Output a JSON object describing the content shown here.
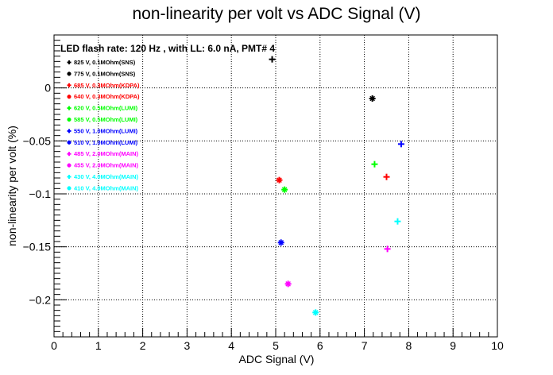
{
  "chart_data": {
    "type": "scatter",
    "title": "non-linearity per volt vs ADC Signal (V)",
    "xlabel": "ADC Signal (V)",
    "ylabel": "non-linearity per volt (%)",
    "xlim": [
      0,
      10
    ],
    "ylim": [
      -0.235,
      0.05
    ],
    "xticks": [
      0,
      1,
      2,
      3,
      4,
      5,
      6,
      7,
      8,
      9,
      10
    ],
    "xtick_labels": [
      "0",
      "1",
      "2",
      "3",
      "4",
      "5",
      "6",
      "7",
      "8",
      "9",
      "10"
    ],
    "yticks": [
      0,
      -0.05,
      -0.1,
      -0.15,
      -0.2
    ],
    "ytick_labels": [
      "0",
      "−0.05",
      "−0.1",
      "−0.15",
      "−0.2"
    ],
    "grid": true,
    "legend_title": "LED flash rate: 120 Hz , with LL: 6.0 nA, PMT# 4",
    "legend_placement": "top-left",
    "series": [
      {
        "name": "825 V, 0.1MOhm(SNS)",
        "color": "#000000",
        "marker": "plus",
        "points": [
          [
            4.92,
            0.027
          ]
        ]
      },
      {
        "name": "775 V, 0.1MOhm(SNS)",
        "color": "#000000",
        "marker": "star",
        "points": [
          [
            7.18,
            -0.01
          ]
        ]
      },
      {
        "name": "685 V, 0.3MOhm(KDPA)",
        "color": "#ff0000",
        "marker": "plus",
        "points": [
          [
            7.5,
            -0.084
          ]
        ]
      },
      {
        "name": "640 V, 0.3MOhm(KDPA)",
        "color": "#ff0000",
        "marker": "star",
        "points": [
          [
            5.08,
            -0.087
          ]
        ]
      },
      {
        "name": "620 V, 0.5MOhm(LUMI)",
        "color": "#00ff00",
        "marker": "plus",
        "points": [
          [
            7.23,
            -0.072
          ]
        ]
      },
      {
        "name": "585 V, 0.5MOhm(LUMI)",
        "color": "#00ff00",
        "marker": "star",
        "points": [
          [
            5.2,
            -0.096
          ]
        ]
      },
      {
        "name": "550 V, 1.0MOhm(LUMI)",
        "color": "#0000ff",
        "marker": "plus",
        "points": [
          [
            7.83,
            -0.053
          ]
        ]
      },
      {
        "name": "510 V, 1.0MOhm(LUMI)",
        "color": "#0000ff",
        "marker": "star",
        "points": [
          [
            5.12,
            -0.146
          ]
        ]
      },
      {
        "name": "485 V, 2.0MOhm(MAIN)",
        "color": "#ff00ff",
        "marker": "plus",
        "points": [
          [
            7.52,
            -0.152
          ]
        ]
      },
      {
        "name": "455 V, 2.0MOhm(MAIN)",
        "color": "#ff00ff",
        "marker": "star",
        "points": [
          [
            5.28,
            -0.185
          ]
        ]
      },
      {
        "name": "430 V, 4.0MOhm(MAIN)",
        "color": "#00ffff",
        "marker": "plus",
        "points": [
          [
            7.75,
            -0.126
          ]
        ]
      },
      {
        "name": "410 V, 4.0MOhm(MAIN)",
        "color": "#00ffff",
        "marker": "star",
        "points": [
          [
            5.9,
            -0.212
          ]
        ]
      }
    ]
  }
}
